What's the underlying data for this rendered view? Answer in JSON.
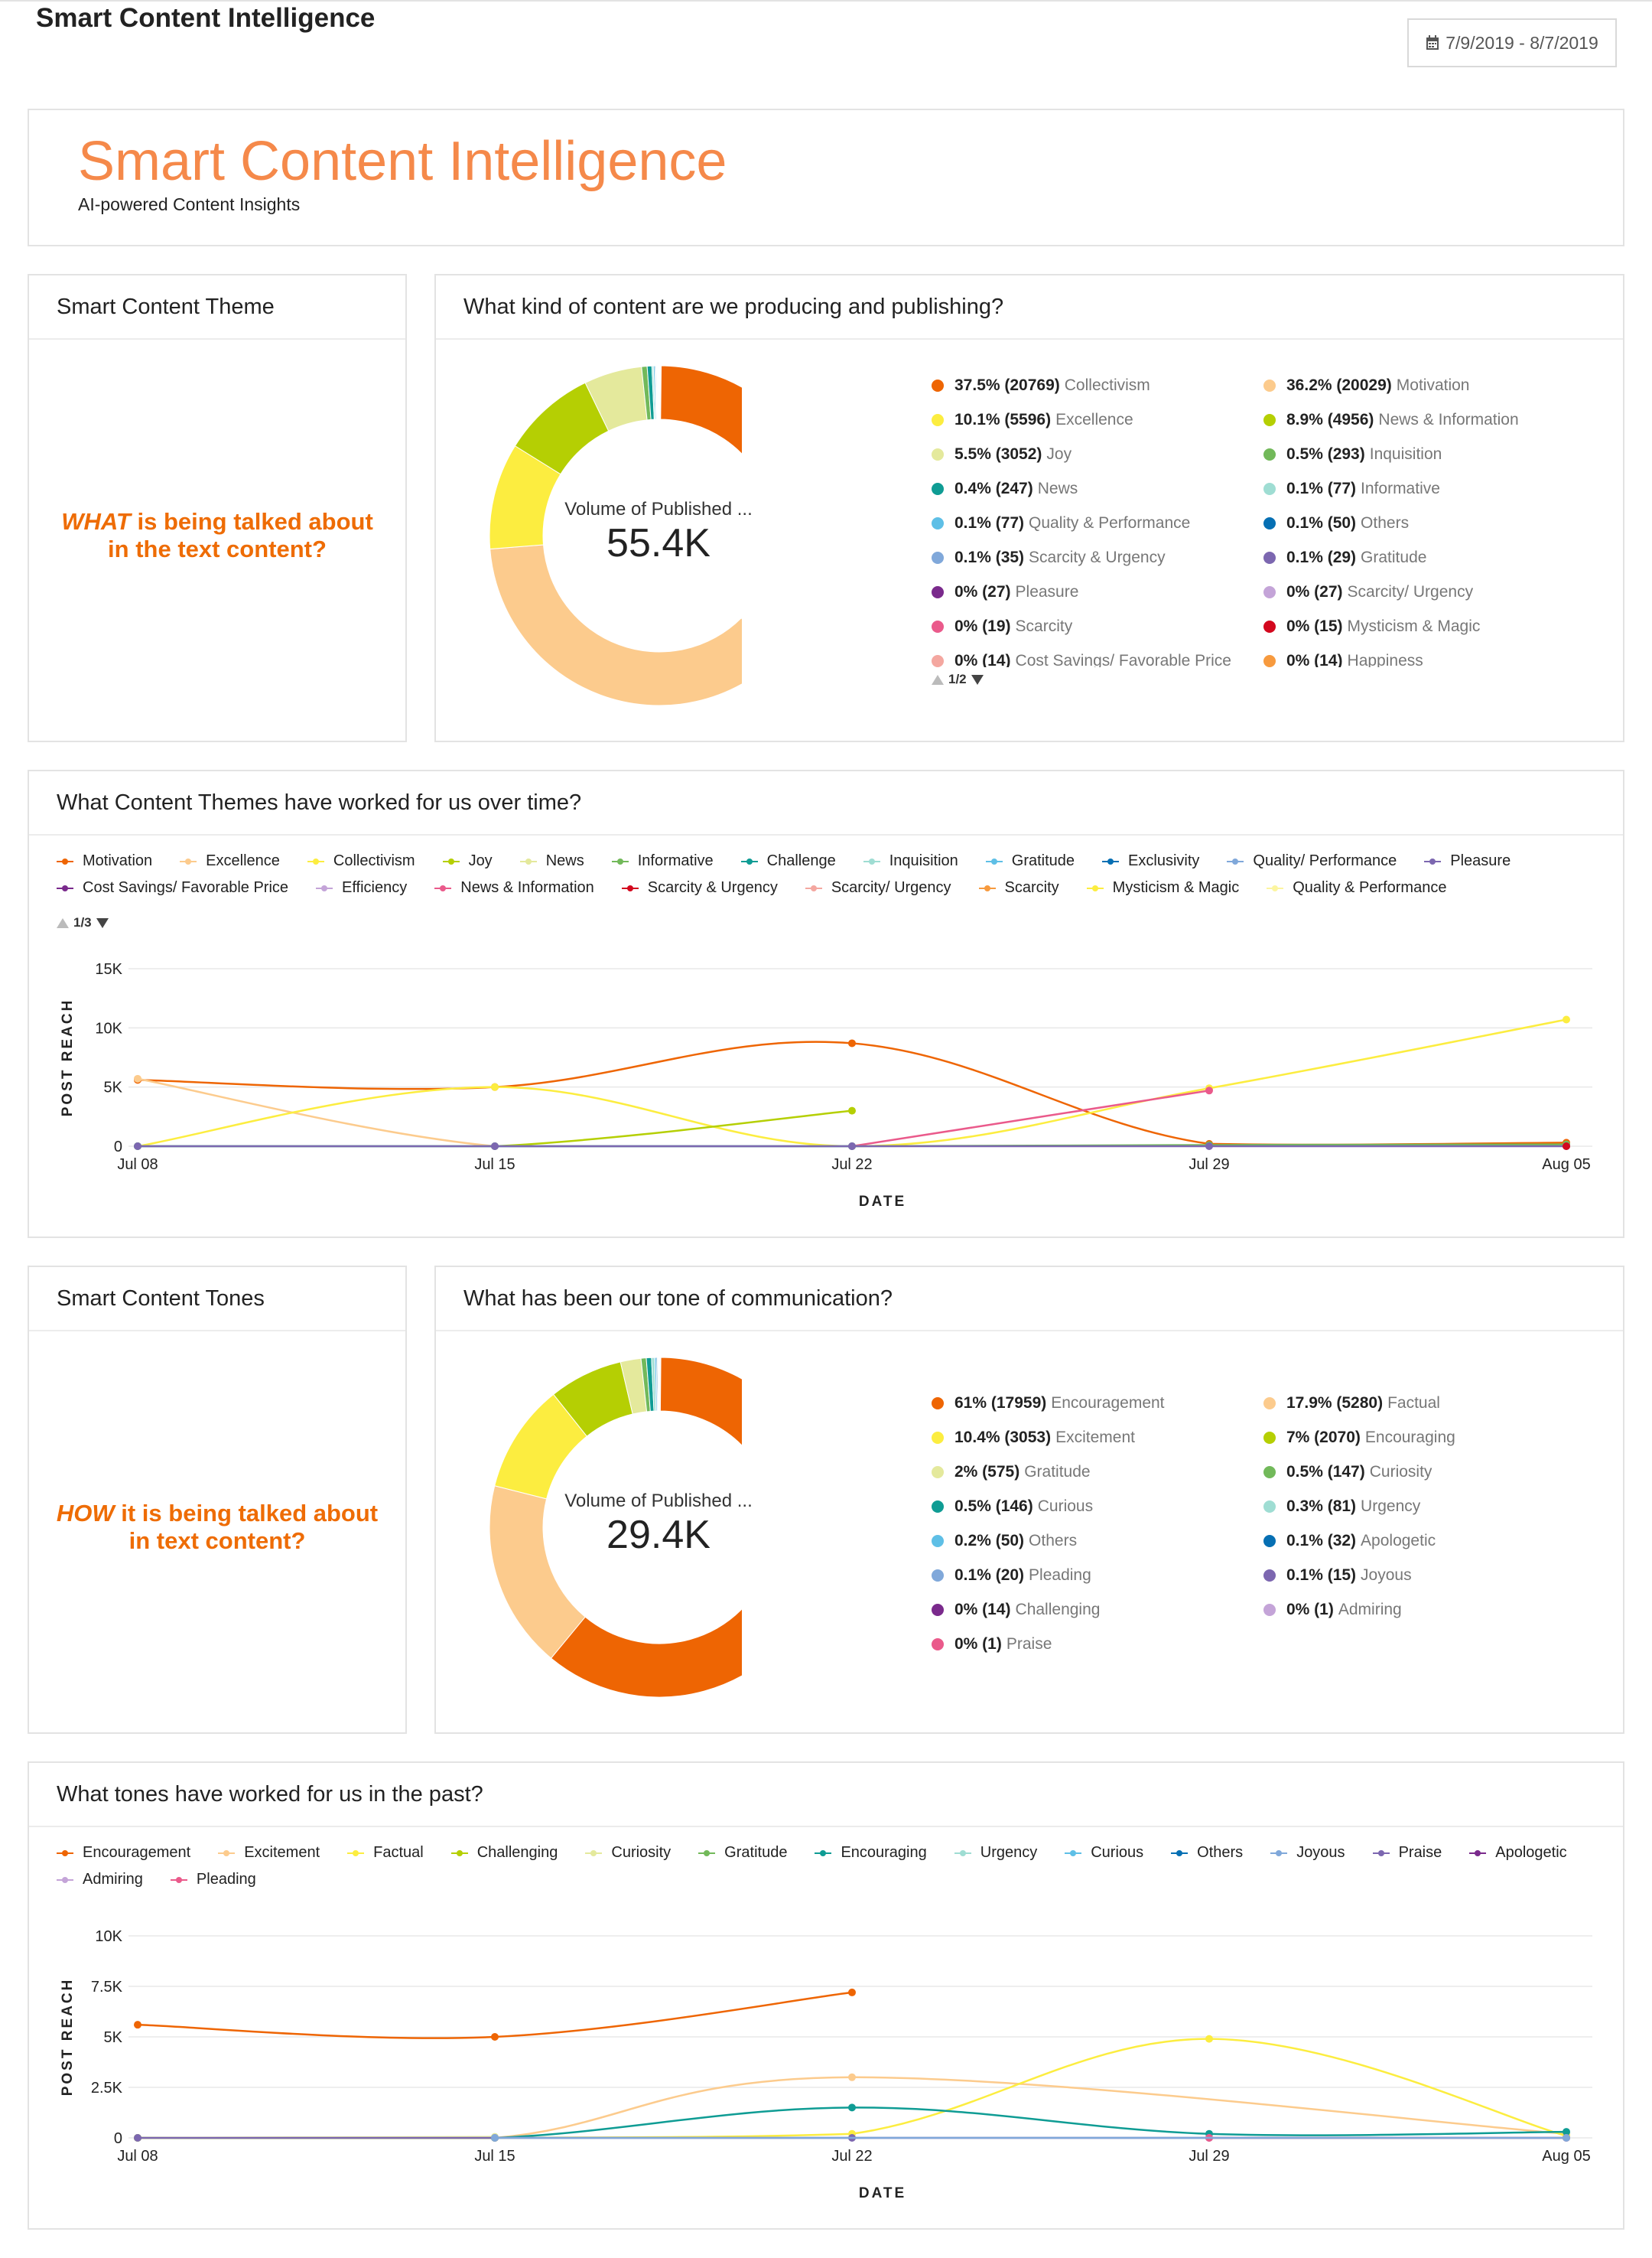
{
  "app": {
    "title": "Smart Content Intelligence",
    "date_range": "7/9/2019 - 8/7/2019"
  },
  "banner": {
    "title": "Smart Content Intelligence",
    "subtitle": "AI-powered Content Insights"
  },
  "theme_card": {
    "title": "Smart Content Theme",
    "question_em": "WHAT",
    "question_rest": " is being talked about in the text content?"
  },
  "content_donut": {
    "title": "What kind of content are we producing and publishing?",
    "center_label": "Volume of Published ...",
    "center_value": "55.4K",
    "pager": "1/2",
    "legend": [
      {
        "pct": "37.5% (20769)",
        "label": "Collectivism",
        "color": "#ee6503",
        "value": 20769
      },
      {
        "pct": "36.2% (20029)",
        "label": "Motivation",
        "color": "#fccb8d",
        "value": 20029
      },
      {
        "pct": "10.1% (5596)",
        "label": "Excellence",
        "color": "#fced40",
        "value": 5596
      },
      {
        "pct": "8.9% (4956)",
        "label": "News & Information",
        "color": "#b5cf03",
        "value": 4956
      },
      {
        "pct": "5.5% (3052)",
        "label": "Joy",
        "color": "#e4e99c",
        "value": 3052
      },
      {
        "pct": "0.5% (293)",
        "label": "Inquisition",
        "color": "#72b95a",
        "value": 293
      },
      {
        "pct": "0.4% (247)",
        "label": "News",
        "color": "#0f9c94",
        "value": 247
      },
      {
        "pct": "0.1% (77)",
        "label": "Informative",
        "color": "#9fddd3",
        "value": 77
      },
      {
        "pct": "0.1% (77)",
        "label": "Quality & Performance",
        "color": "#5ebfe6",
        "value": 77
      },
      {
        "pct": "0.1% (50)",
        "label": "Others",
        "color": "#066fb3",
        "value": 50
      },
      {
        "pct": "0.1% (35)",
        "label": "Scarcity & Urgency",
        "color": "#80a8da",
        "value": 35
      },
      {
        "pct": "0.1% (29)",
        "label": "Gratitude",
        "color": "#7c67b0",
        "value": 29
      },
      {
        "pct": "0% (27)",
        "label": "Pleasure",
        "color": "#7a2a8c",
        "value": 27
      },
      {
        "pct": "0% (27)",
        "label": "Scarcity/ Urgency",
        "color": "#c4a4d8",
        "value": 27
      },
      {
        "pct": "0% (19)",
        "label": "Scarcity",
        "color": "#ea5a8b",
        "value": 19
      },
      {
        "pct": "0% (15)",
        "label": "Mysticism & Magic",
        "color": "#d3081e",
        "value": 15
      },
      {
        "pct": "0% (14)",
        "label": "Cost Savings/ Favorable Price",
        "color": "#f4a7a0",
        "value": 14
      },
      {
        "pct": "0% (14)",
        "label": "Happiness",
        "color": "#f79a3e",
        "value": 14
      }
    ]
  },
  "themes_time": {
    "title": "What Content Themes have worked for us over time?",
    "pager": "1/3",
    "legend": [
      {
        "label": "Motivation",
        "color": "#ee6503"
      },
      {
        "label": "Excellence",
        "color": "#fccb8d"
      },
      {
        "label": "Collectivism",
        "color": "#fced40"
      },
      {
        "label": "Joy",
        "color": "#b5cf03"
      },
      {
        "label": "News",
        "color": "#e4e99c"
      },
      {
        "label": "Informative",
        "color": "#72b95a"
      },
      {
        "label": "Challenge",
        "color": "#0f9c94"
      },
      {
        "label": "Inquisition",
        "color": "#9fddd3"
      },
      {
        "label": "Gratitude",
        "color": "#5ebfe6"
      },
      {
        "label": "Exclusivity",
        "color": "#066fb3"
      },
      {
        "label": "Quality/ Performance",
        "color": "#80a8da"
      },
      {
        "label": "Pleasure",
        "color": "#7c67b0"
      },
      {
        "label": "Cost Savings/ Favorable Price",
        "color": "#7a2a8c"
      },
      {
        "label": "Efficiency",
        "color": "#c4a4d8"
      },
      {
        "label": "News & Information",
        "color": "#ea5a8b"
      },
      {
        "label": "Scarcity & Urgency",
        "color": "#d3081e"
      },
      {
        "label": "Scarcity/ Urgency",
        "color": "#f4a7a0"
      },
      {
        "label": "Scarcity",
        "color": "#f79a3e"
      },
      {
        "label": "Mysticism & Magic",
        "color": "#fced40"
      },
      {
        "label": "Quality & Performance",
        "color": "#fcf5a0"
      }
    ]
  },
  "tones_card": {
    "title": "Smart Content Tones",
    "question_em": "HOW",
    "question_rest": " it is being talked about in text content?"
  },
  "tone_donut": {
    "title": "What has been our tone of communication?",
    "center_label": "Volume of Published ...",
    "center_value": "29.4K",
    "legend": [
      {
        "pct": "61% (17959)",
        "label": "Encouragement",
        "color": "#ee6503",
        "value": 17959
      },
      {
        "pct": "17.9% (5280)",
        "label": "Factual",
        "color": "#fccb8d",
        "value": 5280
      },
      {
        "pct": "10.4% (3053)",
        "label": "Excitement",
        "color": "#fced40",
        "value": 3053
      },
      {
        "pct": "7% (2070)",
        "label": "Encouraging",
        "color": "#b5cf03",
        "value": 2070
      },
      {
        "pct": "2% (575)",
        "label": "Gratitude",
        "color": "#e4e99c",
        "value": 575
      },
      {
        "pct": "0.5% (147)",
        "label": "Curiosity",
        "color": "#72b95a",
        "value": 147
      },
      {
        "pct": "0.5% (146)",
        "label": "Curious",
        "color": "#0f9c94",
        "value": 146
      },
      {
        "pct": "0.3% (81)",
        "label": "Urgency",
        "color": "#9fddd3",
        "value": 81
      },
      {
        "pct": "0.2% (50)",
        "label": "Others",
        "color": "#5ebfe6",
        "value": 50
      },
      {
        "pct": "0.1% (32)",
        "label": "Apologetic",
        "color": "#066fb3",
        "value": 32
      },
      {
        "pct": "0.1% (20)",
        "label": "Pleading",
        "color": "#80a8da",
        "value": 20
      },
      {
        "pct": "0.1% (15)",
        "label": "Joyous",
        "color": "#7c67b0",
        "value": 15
      },
      {
        "pct": "0% (14)",
        "label": "Challenging",
        "color": "#7a2a8c",
        "value": 14
      },
      {
        "pct": "0% (1)",
        "label": "Admiring",
        "color": "#c4a4d8",
        "value": 1
      },
      {
        "pct": "0% (1)",
        "label": "Praise",
        "color": "#ea5a8b",
        "value": 1
      }
    ]
  },
  "tones_time": {
    "title": "What tones have worked for us in the past?",
    "legend": [
      {
        "label": "Encouragement",
        "color": "#ee6503"
      },
      {
        "label": "Excitement",
        "color": "#fccb8d"
      },
      {
        "label": "Factual",
        "color": "#fced40"
      },
      {
        "label": "Challenging",
        "color": "#b5cf03"
      },
      {
        "label": "Curiosity",
        "color": "#e4e99c"
      },
      {
        "label": "Gratitude",
        "color": "#72b95a"
      },
      {
        "label": "Encouraging",
        "color": "#0f9c94"
      },
      {
        "label": "Urgency",
        "color": "#9fddd3"
      },
      {
        "label": "Curious",
        "color": "#5ebfe6"
      },
      {
        "label": "Others",
        "color": "#066fb3"
      },
      {
        "label": "Joyous",
        "color": "#80a8da"
      },
      {
        "label": "Praise",
        "color": "#7c67b0"
      },
      {
        "label": "Apologetic",
        "color": "#7a2a8c"
      },
      {
        "label": "Admiring",
        "color": "#c4a4d8"
      },
      {
        "label": "Pleading",
        "color": "#ea5a8b"
      }
    ]
  },
  "chart_data": [
    {
      "type": "line",
      "title": "What Content Themes have worked for us over time?",
      "xlabel": "DATE",
      "ylabel": "POST REACH",
      "categories": [
        "Jul 08",
        "Jul 15",
        "Jul 22",
        "Jul 29",
        "Aug 05"
      ],
      "ylim": [
        0,
        15000
      ],
      "yticks": [
        {
          "v": 0,
          "label": "0"
        },
        {
          "v": 5000,
          "label": "5K"
        },
        {
          "v": 10000,
          "label": "10K"
        },
        {
          "v": 15000,
          "label": "15K"
        }
      ],
      "series": [
        {
          "name": "Motivation",
          "color": "#ee6503",
          "values": [
            5600,
            5000,
            8700,
            200,
            300
          ]
        },
        {
          "name": "Excellence",
          "color": "#fccb8d",
          "values": [
            5700,
            0,
            0,
            null,
            null
          ]
        },
        {
          "name": "Collectivism",
          "color": "#fced40",
          "values": [
            0,
            5000,
            0,
            4900,
            10700
          ]
        },
        {
          "name": "Joy",
          "color": "#b5cf03",
          "values": [
            0,
            0,
            3000,
            null,
            null
          ]
        },
        {
          "name": "News & Information",
          "color": "#ea5a8b",
          "values": [
            null,
            null,
            0,
            4700,
            null
          ]
        },
        {
          "name": "Informative",
          "color": "#72b95a",
          "values": [
            0,
            0,
            0,
            100,
            150
          ]
        },
        {
          "name": "Gratitude",
          "color": "#5ebfe6",
          "values": [
            0,
            0,
            0,
            null,
            null
          ]
        },
        {
          "name": "Pleasure",
          "color": "#7c67b0",
          "values": [
            0,
            0,
            0,
            0,
            0
          ]
        },
        {
          "name": "Mysticism & Magic",
          "color": "#d3081e",
          "values": [
            null,
            null,
            null,
            null,
            0
          ]
        }
      ]
    },
    {
      "type": "line",
      "title": "What tones have worked for us in the past?",
      "xlabel": "DATE",
      "ylabel": "POST REACH",
      "categories": [
        "Jul 08",
        "Jul 15",
        "Jul 22",
        "Jul 29",
        "Aug 05"
      ],
      "ylim": [
        0,
        10000
      ],
      "yticks": [
        {
          "v": 0,
          "label": "0"
        },
        {
          "v": 2500,
          "label": "2.5K"
        },
        {
          "v": 5000,
          "label": "5K"
        },
        {
          "v": 7500,
          "label": "7.5K"
        },
        {
          "v": 10000,
          "label": "10K"
        }
      ],
      "series": [
        {
          "name": "Encouragement",
          "color": "#ee6503",
          "values": [
            5600,
            5000,
            7200,
            null,
            null
          ]
        },
        {
          "name": "Excitement",
          "color": "#fccb8d",
          "values": [
            0,
            0,
            3000,
            null,
            200
          ]
        },
        {
          "name": "Factual",
          "color": "#fced40",
          "values": [
            0,
            0,
            200,
            4900,
            100
          ]
        },
        {
          "name": "Encouraging",
          "color": "#0f9c94",
          "values": [
            0,
            0,
            1500,
            200,
            300
          ]
        },
        {
          "name": "Challenging",
          "color": "#b5cf03",
          "values": [
            0,
            0,
            null,
            null,
            null
          ]
        },
        {
          "name": "Curiosity",
          "color": "#e4e99c",
          "values": [
            0,
            50,
            null,
            null,
            null
          ]
        },
        {
          "name": "Praise",
          "color": "#7c67b0",
          "values": [
            0,
            0,
            0,
            0,
            0
          ]
        },
        {
          "name": "Pleading",
          "color": "#ea5a8b",
          "values": [
            null,
            null,
            null,
            0,
            0
          ]
        },
        {
          "name": "Joyous",
          "color": "#80a8da",
          "values": [
            null,
            0,
            null,
            null,
            0
          ]
        }
      ]
    },
    {
      "type": "pie",
      "title": "What kind of content are we producing and publishing?",
      "center_value": "55.4K",
      "labels": [
        "Collectivism",
        "Motivation",
        "Excellence",
        "News & Information",
        "Joy",
        "Inquisition",
        "News",
        "Informative",
        "Quality & Performance",
        "Others",
        "Scarcity & Urgency",
        "Gratitude",
        "Pleasure",
        "Scarcity/ Urgency",
        "Scarcity",
        "Mysticism & Magic",
        "Cost Savings/ Favorable Price",
        "Happiness"
      ],
      "values": [
        20769,
        20029,
        5596,
        4956,
        3052,
        293,
        247,
        77,
        77,
        50,
        35,
        29,
        27,
        27,
        19,
        15,
        14,
        14
      ]
    },
    {
      "type": "pie",
      "title": "What has been our tone of communication?",
      "center_value": "29.4K",
      "labels": [
        "Encouragement",
        "Factual",
        "Excitement",
        "Encouraging",
        "Gratitude",
        "Curiosity",
        "Curious",
        "Urgency",
        "Others",
        "Apologetic",
        "Pleading",
        "Joyous",
        "Challenging",
        "Admiring",
        "Praise"
      ],
      "values": [
        17959,
        5280,
        3053,
        2070,
        575,
        147,
        146,
        81,
        50,
        32,
        20,
        15,
        14,
        1,
        1
      ]
    }
  ]
}
